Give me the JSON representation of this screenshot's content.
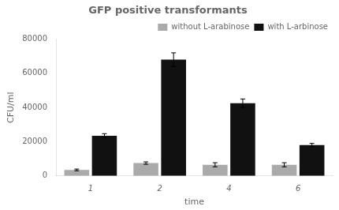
{
  "chart_data": {
    "type": "bar",
    "title": "GFP positive transformants",
    "xlabel": "time",
    "ylabel": "CFU/ml",
    "categories": [
      "1",
      "2",
      "4",
      "6"
    ],
    "series": [
      {
        "name": "without L-arabinose",
        "color": "#aaaaaa",
        "values": [
          3500,
          7500,
          6500,
          6500
        ],
        "errors": [
          500,
          700,
          1200,
          1200
        ]
      },
      {
        "name": "with L-arbinose",
        "color": "#111111",
        "values": [
          23500,
          68000,
          42500,
          18000
        ],
        "errors": [
          1200,
          4000,
          2500,
          1000
        ]
      }
    ],
    "ylim": [
      0,
      80000
    ],
    "yticks": [
      0,
      20000,
      40000,
      60000,
      80000
    ],
    "legend": "upper right",
    "grid": false
  }
}
